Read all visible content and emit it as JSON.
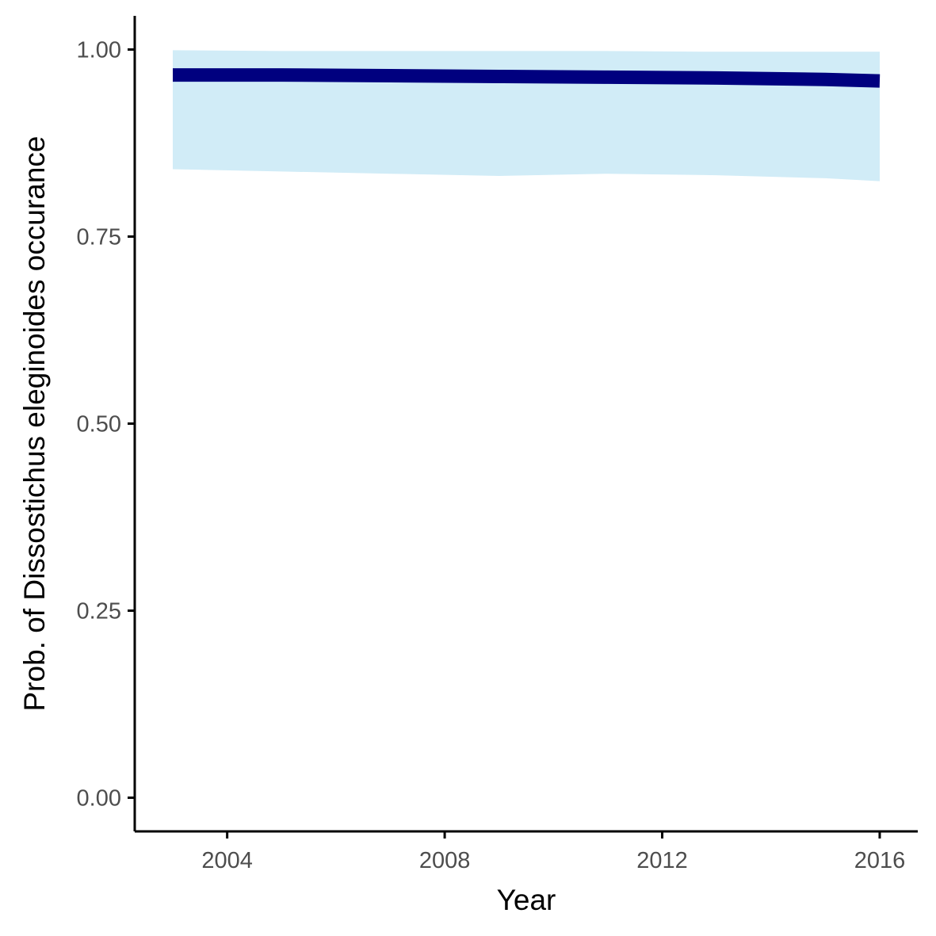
{
  "chart_data": {
    "type": "line",
    "title": "",
    "xlabel": "Year",
    "ylabel": "Prob. of  Dissostichus eleginoides  occurance",
    "xlim": [
      2002.3,
      2016.7
    ],
    "ylim": [
      -0.045,
      1.045
    ],
    "x_ticks": [
      2004,
      2008,
      2012,
      2016
    ],
    "x_tick_labels": [
      "2004",
      "2008",
      "2012",
      "2016"
    ],
    "y_ticks": [
      0,
      0.25,
      0.5,
      0.75,
      1.0
    ],
    "y_tick_labels": [
      "0.00",
      "0.25",
      "0.50",
      "0.75",
      "1.00"
    ],
    "grid": false,
    "legend": "none",
    "series": [
      {
        "x": [
          2003,
          2005,
          2007,
          2009,
          2011,
          2013,
          2015,
          2016
        ],
        "values": [
          0.966,
          0.966,
          0.965,
          0.964,
          0.963,
          0.962,
          0.96,
          0.958
        ],
        "lower": [
          0.84,
          0.837,
          0.834,
          0.831,
          0.834,
          0.832,
          0.828,
          0.824
        ],
        "upper": [
          0.999,
          0.998,
          0.998,
          0.998,
          0.998,
          0.997,
          0.997,
          0.997
        ]
      }
    ],
    "colors": {
      "line": "#00007f",
      "ribbon": "#d1ecf7",
      "axis": "#000000",
      "tick_text": "#4d4d4d"
    }
  }
}
